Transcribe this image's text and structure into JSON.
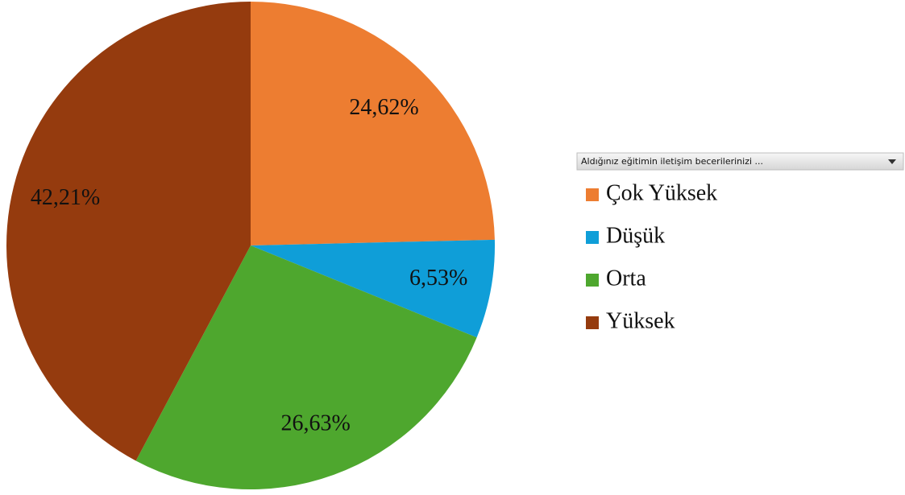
{
  "chart_data": {
    "type": "pie",
    "legend_title": "Aldığınız eğitimin iletişim becerilerinizi ...",
    "categories": [
      "Çok Yüksek",
      "Düşük",
      "Orta",
      "Yüksek"
    ],
    "values": [
      24.62,
      6.53,
      26.63,
      42.21
    ],
    "value_labels": [
      "24,62%",
      "6,53%",
      "26,63%",
      "42,21%"
    ],
    "colors": [
      "#ed7d31",
      "#0f9ed8",
      "#4ea72e",
      "#953b0e"
    ],
    "legend": "right"
  }
}
